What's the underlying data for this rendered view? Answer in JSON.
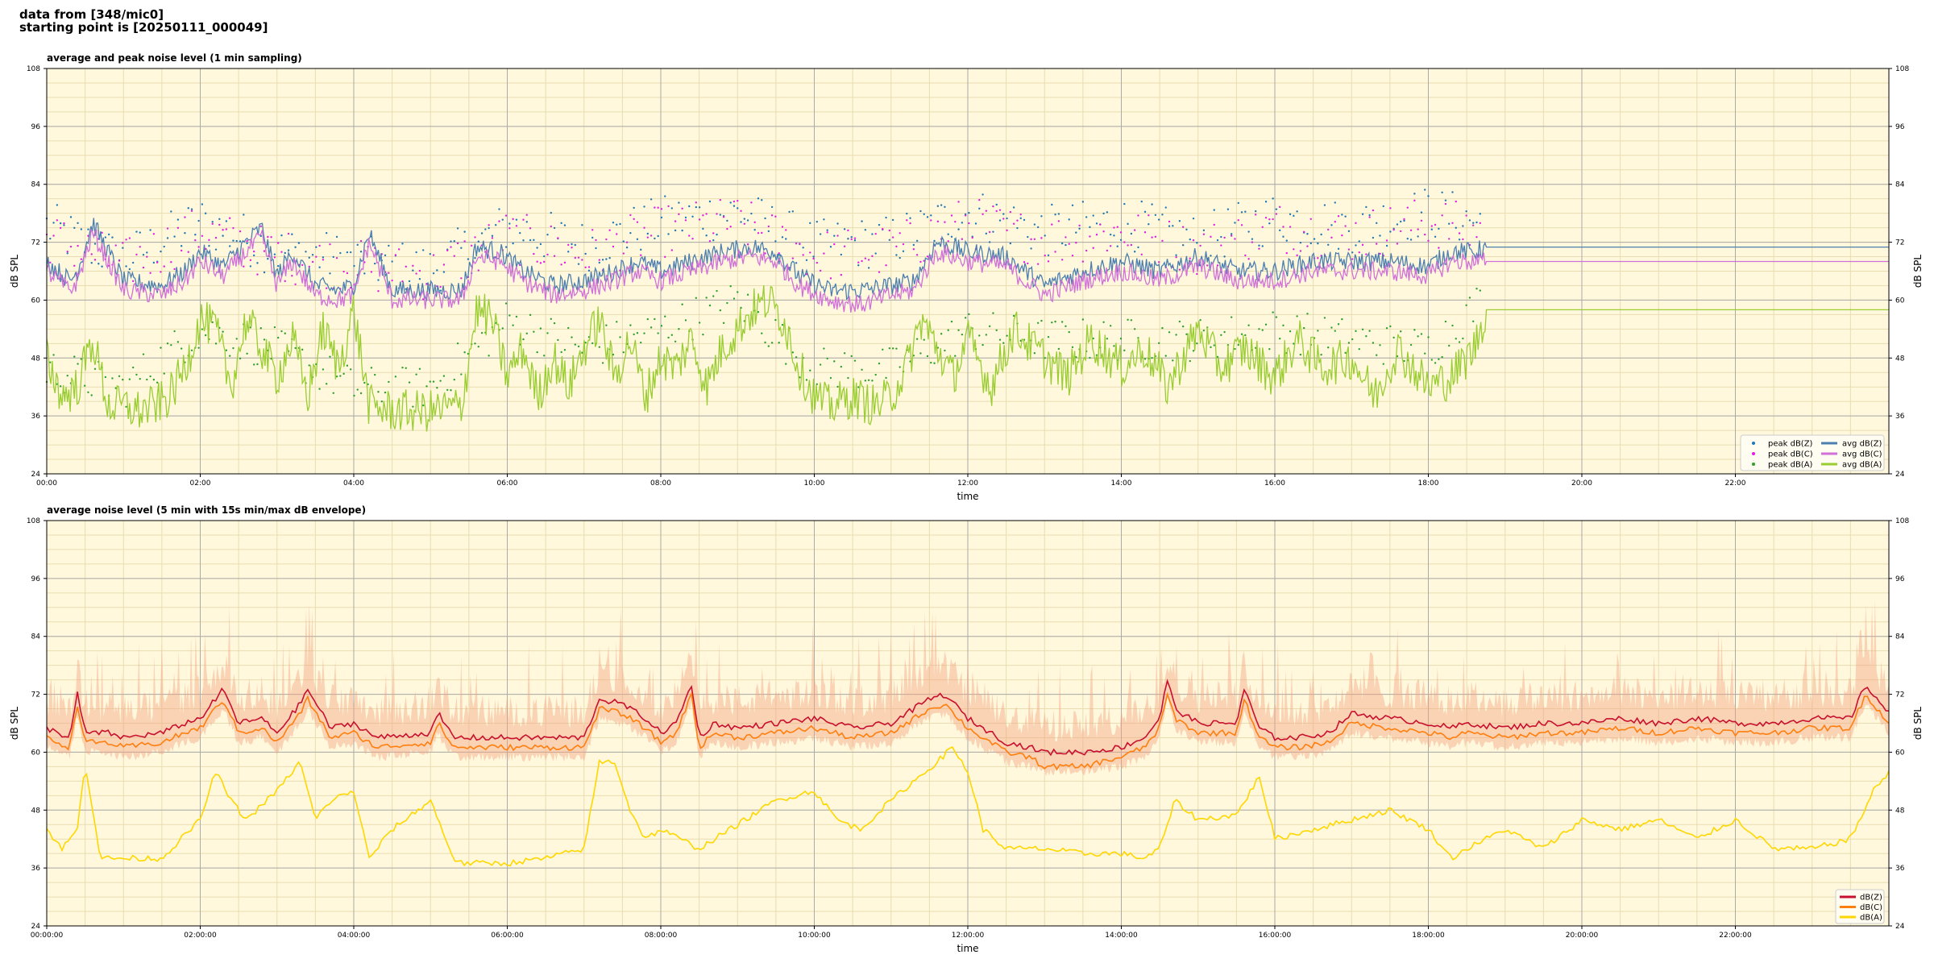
{
  "header": {
    "line1": "data from [348/mic0]",
    "line2": "starting point is [20250111_000049]"
  },
  "colors": {
    "plot_bg": "#fff8dc",
    "peak_z": "#1f77b4",
    "peak_c": "#e020e0",
    "peak_a": "#2ca02c",
    "avg_z": "#4c7fb0",
    "avg_c": "#d070d8",
    "avg_a": "#9acd32",
    "z": "#c8102e",
    "c": "#ff7f0e",
    "a": "#ffd700",
    "envelope": "#f4a582"
  },
  "chart_data": [
    {
      "type": "line",
      "title": "average and peak noise level (1 min sampling)",
      "xlabel": "time",
      "ylabel": "dB SPL",
      "xlim": [
        0,
        24
      ],
      "ylim": [
        24,
        108
      ],
      "xticks": [
        "00:00",
        "02:00",
        "04:00",
        "06:00",
        "08:00",
        "10:00",
        "12:00",
        "14:00",
        "16:00",
        "18:00",
        "20:00",
        "22:00"
      ],
      "yticks": [
        24,
        36,
        48,
        60,
        72,
        84,
        96,
        108
      ],
      "grid": true,
      "legend": "bottom-right",
      "series": [
        {
          "name": "peak dB(Z)",
          "kind": "scatter",
          "color_key": "peak_z",
          "x": [
            0,
            1,
            2,
            3,
            4,
            5,
            6,
            7,
            8,
            9,
            10,
            11,
            12,
            13,
            14,
            15,
            16,
            17,
            18,
            18.7
          ],
          "y": [
            73,
            66,
            74,
            68,
            66,
            64,
            73,
            69,
            74,
            76,
            69,
            70,
            76,
            72,
            74,
            70,
            75,
            73,
            76,
            74
          ]
        },
        {
          "name": "peak dB(C)",
          "kind": "scatter",
          "color_key": "peak_c",
          "x": [
            0,
            1,
            2,
            3,
            4,
            5,
            6,
            7,
            8,
            9,
            10,
            11,
            12,
            13,
            14,
            15,
            16,
            17,
            18,
            18.7
          ],
          "y": [
            71,
            65,
            72,
            67,
            65,
            63,
            71,
            67,
            72,
            74,
            67,
            68,
            74,
            70,
            72,
            68,
            73,
            71,
            74,
            72
          ]
        },
        {
          "name": "peak dB(A)",
          "kind": "scatter",
          "color_key": "peak_a",
          "x": [
            0,
            1,
            2,
            3,
            4,
            5,
            6,
            7,
            8,
            9,
            10,
            11,
            12,
            13,
            14,
            15,
            16,
            17,
            18,
            18.7
          ],
          "y": [
            44,
            40,
            52,
            48,
            40,
            40,
            54,
            48,
            52,
            58,
            44,
            44,
            52,
            50,
            50,
            50,
            52,
            50,
            48,
            58
          ]
        },
        {
          "name": "avg dB(Z)",
          "kind": "line",
          "color_key": "avg_z",
          "x": [
            0,
            0.3,
            0.4,
            0.6,
            1,
            1.5,
            1.8,
            2,
            2.3,
            2.6,
            2.8,
            3,
            3.2,
            3.5,
            3.8,
            4,
            4.2,
            4.5,
            5,
            5.4,
            5.6,
            5.9,
            6.2,
            6.6,
            7,
            7.4,
            7.7,
            8,
            8.4,
            8.8,
            9.2,
            9.5,
            9.8,
            10.2,
            10.6,
            11,
            11.3,
            11.6,
            12,
            12.5,
            13,
            13.5,
            14,
            14.5,
            15,
            15.5,
            16,
            16.5,
            17,
            17.5,
            18,
            18.3,
            18.6,
            18.75,
            20,
            22,
            24
          ],
          "y": [
            68,
            64,
            66,
            76,
            64,
            63,
            66,
            70,
            67,
            72,
            75,
            65,
            70,
            63,
            62,
            63,
            74,
            62,
            62,
            62,
            71,
            70,
            66,
            63,
            64,
            66,
            68,
            66,
            68,
            70,
            71,
            70,
            65,
            62,
            62,
            63,
            64,
            72,
            70,
            69,
            63,
            66,
            68,
            66,
            69,
            66,
            66,
            68,
            68,
            68,
            67,
            70,
            70,
            71,
            71,
            71,
            71
          ]
        },
        {
          "name": "avg dB(C)",
          "kind": "line",
          "color_key": "avg_c",
          "x": [
            0,
            0.3,
            0.4,
            0.6,
            1,
            1.5,
            1.8,
            2,
            2.3,
            2.6,
            2.8,
            3,
            3.2,
            3.5,
            3.8,
            4,
            4.2,
            4.5,
            5,
            5.4,
            5.6,
            5.9,
            6.2,
            6.6,
            7,
            7.4,
            7.7,
            8,
            8.4,
            8.8,
            9.2,
            9.5,
            9.8,
            10.2,
            10.6,
            11,
            11.3,
            11.6,
            12,
            12.5,
            13,
            13.5,
            14,
            14.5,
            15,
            15.5,
            16,
            16.5,
            17,
            17.5,
            18,
            18.3,
            18.6,
            18.75,
            20,
            22,
            24
          ],
          "y": [
            66,
            62,
            64,
            74,
            62,
            61,
            64,
            68,
            65,
            70,
            73,
            63,
            68,
            61,
            60,
            61,
            72,
            60,
            60,
            60,
            69,
            68,
            64,
            61,
            62,
            64,
            66,
            64,
            66,
            68,
            69,
            68,
            63,
            60,
            59,
            61,
            62,
            70,
            68,
            67,
            61,
            64,
            66,
            64,
            67,
            64,
            64,
            66,
            66,
            66,
            65,
            68,
            68,
            68,
            68,
            68,
            68
          ]
        },
        {
          "name": "avg dB(A)",
          "kind": "line",
          "color_key": "avg_a",
          "x": [
            0,
            0.2,
            0.4,
            0.6,
            0.8,
            1,
            1.2,
            1.4,
            1.6,
            1.8,
            2,
            2.2,
            2.4,
            2.6,
            2.8,
            3,
            3.2,
            3.4,
            3.6,
            3.8,
            4,
            4.2,
            4.5,
            5,
            5.4,
            5.6,
            5.8,
            6,
            6.2,
            6.4,
            6.6,
            6.8,
            7,
            7.2,
            7.4,
            7.6,
            7.8,
            8,
            8.2,
            8.4,
            8.6,
            8.8,
            9,
            9.2,
            9.4,
            9.6,
            9.8,
            10,
            10.2,
            10.5,
            10.8,
            11,
            11.2,
            11.4,
            11.6,
            11.8,
            12,
            12.3,
            12.6,
            13,
            13.3,
            13.6,
            14,
            14.3,
            14.6,
            15,
            15.3,
            15.6,
            16,
            16.3,
            16.6,
            17,
            17.3,
            17.6,
            18,
            18.3,
            18.6,
            18.75,
            20,
            22,
            24
          ],
          "y": [
            48,
            40,
            42,
            52,
            38,
            38,
            37,
            38,
            40,
            46,
            56,
            54,
            42,
            56,
            50,
            44,
            52,
            40,
            54,
            46,
            58,
            38,
            37,
            37,
            38,
            58,
            56,
            44,
            50,
            40,
            48,
            42,
            50,
            56,
            44,
            52,
            40,
            48,
            46,
            52,
            42,
            50,
            54,
            58,
            60,
            56,
            46,
            40,
            38,
            40,
            38,
            40,
            46,
            56,
            50,
            44,
            52,
            42,
            54,
            48,
            44,
            52,
            46,
            50,
            42,
            54,
            46,
            50,
            44,
            52,
            46,
            48,
            40,
            50,
            42,
            44,
            50,
            58,
            58,
            58,
            58
          ]
        }
      ]
    },
    {
      "type": "line",
      "title": "average noise level (5 min with 15s min/max dB envelope)",
      "xlabel": "time",
      "ylabel": "dB SPL",
      "xlim": [
        0,
        24
      ],
      "ylim": [
        24,
        108
      ],
      "xticks": [
        "00:00:00",
        "02:00:00",
        "04:00:00",
        "06:00:00",
        "08:00:00",
        "10:00:00",
        "12:00:00",
        "14:00:00",
        "16:00:00",
        "18:00:00",
        "20:00:00",
        "22:00:00"
      ],
      "yticks": [
        24,
        36,
        48,
        60,
        72,
        84,
        96,
        108
      ],
      "grid": true,
      "legend": "bottom-right",
      "series": [
        {
          "name": "dB(Z)",
          "color_key": "z",
          "x": [
            0,
            0.3,
            0.4,
            0.5,
            0.8,
            1,
            1.5,
            1.8,
            2,
            2.3,
            2.5,
            2.8,
            3,
            3.3,
            3.4,
            3.7,
            4,
            4.3,
            5,
            5.1,
            5.3,
            5.8,
            6,
            6.5,
            7,
            7.2,
            7.5,
            7.8,
            8,
            8.2,
            8.4,
            8.5,
            8.7,
            9,
            9.5,
            10,
            10.5,
            11,
            11.5,
            11.7,
            12,
            12.2,
            12.5,
            12.8,
            13,
            13.5,
            14,
            14.3,
            14.5,
            14.6,
            14.7,
            15,
            15.5,
            15.6,
            15.8,
            16,
            16.3,
            16.7,
            17,
            17.5,
            18,
            18.3,
            18.5,
            19,
            19.5,
            20,
            20.5,
            21,
            21.5,
            22,
            22.5,
            23,
            23.5,
            23.7,
            24
          ],
          "y": [
            65,
            63,
            72,
            64,
            64,
            63,
            64,
            66,
            67,
            73,
            66,
            67,
            64,
            70,
            73,
            65,
            66,
            63,
            64,
            68,
            63,
            63,
            63,
            63,
            63,
            71,
            70,
            67,
            64,
            66,
            74,
            63,
            66,
            65,
            66,
            67,
            65,
            66,
            71,
            72,
            67,
            65,
            62,
            61,
            60,
            60,
            61,
            63,
            67,
            75,
            69,
            66,
            66,
            73,
            65,
            63,
            63,
            64,
            68,
            67,
            66,
            65,
            66,
            65,
            66,
            66,
            67,
            66,
            67,
            66,
            66,
            67,
            67,
            74,
            68
          ]
        },
        {
          "name": "dB(C)",
          "color_key": "c",
          "x": [
            0,
            0.3,
            0.4,
            0.5,
            0.8,
            1,
            1.5,
            1.8,
            2,
            2.3,
            2.5,
            2.8,
            3,
            3.3,
            3.4,
            3.7,
            4,
            4.3,
            5,
            5.1,
            5.3,
            5.8,
            6,
            6.5,
            7,
            7.2,
            7.5,
            7.8,
            8,
            8.2,
            8.4,
            8.5,
            8.7,
            9,
            9.5,
            10,
            10.5,
            11,
            11.5,
            11.7,
            12,
            12.2,
            12.5,
            12.8,
            13,
            13.5,
            14,
            14.3,
            14.5,
            14.6,
            14.7,
            15,
            15.5,
            15.6,
            15.8,
            16,
            16.3,
            16.7,
            17,
            17.5,
            18,
            18.3,
            18.5,
            19,
            19.5,
            20,
            20.5,
            21,
            21.5,
            22,
            22.5,
            23,
            23.5,
            23.7,
            24
          ],
          "y": [
            63,
            61,
            70,
            62,
            62,
            61,
            62,
            64,
            65,
            71,
            64,
            65,
            62,
            68,
            71,
            63,
            64,
            61,
            62,
            66,
            61,
            61,
            61,
            61,
            61,
            69,
            68,
            65,
            62,
            64,
            72,
            61,
            64,
            63,
            64,
            65,
            63,
            64,
            69,
            70,
            65,
            63,
            60,
            59,
            57,
            57,
            59,
            61,
            65,
            72,
            67,
            64,
            64,
            71,
            63,
            61,
            61,
            62,
            66,
            65,
            64,
            63,
            64,
            63,
            64,
            64,
            65,
            64,
            65,
            64,
            64,
            65,
            65,
            72,
            66
          ]
        },
        {
          "name": "dB(A)",
          "color_key": "a",
          "x": [
            0,
            0.2,
            0.4,
            0.5,
            0.7,
            1,
            1.5,
            2,
            2.2,
            2.4,
            2.6,
            3,
            3.3,
            3.5,
            3.7,
            4,
            4.2,
            4.5,
            5,
            5.3,
            5.4,
            5.6,
            6,
            6.5,
            7,
            7.2,
            7.4,
            7.6,
            7.8,
            8,
            8.5,
            9,
            9.5,
            10,
            10.3,
            10.6,
            11,
            11.3,
            11.6,
            11.8,
            12,
            12.2,
            12.5,
            13,
            13.5,
            14,
            14.3,
            14.5,
            14.7,
            15,
            15.5,
            15.8,
            16,
            16.5,
            17,
            17.5,
            18,
            18.3,
            18.5,
            19,
            19.5,
            20,
            20.5,
            21,
            21.5,
            22,
            22.5,
            23,
            23.5,
            23.8,
            24
          ],
          "y": [
            44,
            40,
            44,
            58,
            38,
            38,
            38,
            46,
            56,
            50,
            46,
            52,
            58,
            46,
            50,
            52,
            38,
            44,
            50,
            38,
            37,
            37,
            37,
            38,
            40,
            58,
            58,
            48,
            42,
            44,
            40,
            45,
            50,
            52,
            46,
            44,
            50,
            54,
            58,
            61,
            56,
            44,
            40,
            40,
            39,
            39,
            38,
            40,
            50,
            46,
            47,
            55,
            42,
            44,
            46,
            48,
            44,
            38,
            40,
            44,
            40,
            46,
            44,
            46,
            42,
            46,
            40,
            40,
            42,
            52,
            56
          ],
          "note": "x in hours"
        }
      ],
      "envelope": {
        "color_key": "envelope",
        "name": "15s min/max envelope"
      }
    }
  ]
}
